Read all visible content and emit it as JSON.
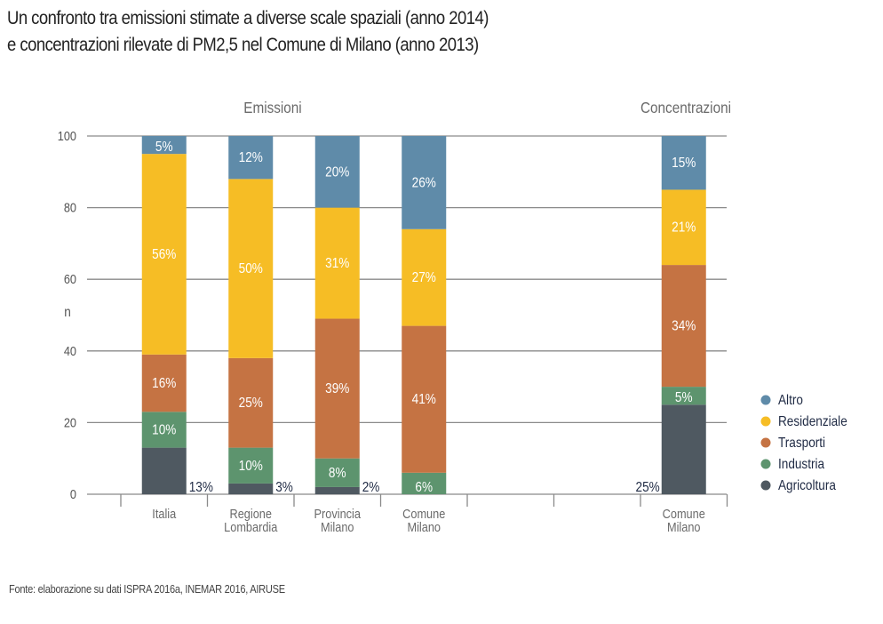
{
  "title_line1": "Un confronto tra emissioni stimate a diverse scale spaziali (anno 2014)",
  "title_line2": "e concentrazioni rilevate di PM2,5 nel Comune di Milano (anno 2013)",
  "source": "Fonte: elaborazione su dati ISPRA 2016a, INEMAR 2016, AIRUSE",
  "colors": {
    "Altro": "#5f8ba9",
    "Residenziale": "#f6bd25",
    "Trasporti": "#c57343",
    "Industria": "#5d946e",
    "Agricoltura": "#4f5961",
    "grid": "#8a8a8a",
    "axis_text": "#555555"
  },
  "chart_data": {
    "type": "bar",
    "stacked": true,
    "title": "Un confronto tra emissioni stimate a diverse scale spaziali (anno 2014) e concentrazioni rilevate di PM2,5 nel Comune di Milano (anno 2013)",
    "ylabel": "n",
    "xlabel": "",
    "ylim": [
      0,
      100
    ],
    "yticks": [
      0,
      20,
      40,
      60,
      80,
      100
    ],
    "grid": true,
    "legend_position": "right",
    "group_labels": [
      "Emissioni",
      "Concentrazioni"
    ],
    "slots": [
      "Italia",
      "Regione Lombardia",
      "Provincia Milano",
      "Comune Milano",
      "",
      "",
      "Comune Milano"
    ],
    "categories": [
      {
        "label": [
          "Italia"
        ],
        "group": "Emissioni",
        "slot": 0
      },
      {
        "label": [
          "Regione",
          "Lombardia"
        ],
        "group": "Emissioni",
        "slot": 1
      },
      {
        "label": [
          "Provincia",
          "Milano"
        ],
        "group": "Emissioni",
        "slot": 2
      },
      {
        "label": [
          "Comune",
          "Milano"
        ],
        "group": "Emissioni",
        "slot": 3
      },
      {
        "label": [
          "Comune",
          "Milano"
        ],
        "group": "Concentrazioni",
        "slot": 6
      }
    ],
    "series": [
      {
        "name": "Agricoltura",
        "values": [
          13,
          3,
          2,
          0,
          25
        ],
        "labels": [
          "13%",
          "3%",
          "2%",
          "",
          "25%"
        ],
        "label_outside": true
      },
      {
        "name": "Industria",
        "values": [
          10,
          10,
          8,
          6,
          5
        ],
        "labels": [
          "10%",
          "10%",
          "8%",
          "6%",
          "5%"
        ]
      },
      {
        "name": "Trasporti",
        "values": [
          16,
          25,
          39,
          41,
          34
        ],
        "labels": [
          "16%",
          "25%",
          "39%",
          "41%",
          "34%"
        ]
      },
      {
        "name": "Residenziale",
        "values": [
          56,
          50,
          31,
          27,
          21
        ],
        "labels": [
          "56%",
          "50%",
          "31%",
          "27%",
          "21%"
        ]
      },
      {
        "name": "Altro",
        "values": [
          5,
          12,
          20,
          26,
          15
        ],
        "labels": [
          "5%",
          "12%",
          "20%",
          "26%",
          "15%"
        ]
      }
    ],
    "legend": [
      "Altro",
      "Residenziale",
      "Trasporti",
      "Industria",
      "Agricoltura"
    ]
  }
}
